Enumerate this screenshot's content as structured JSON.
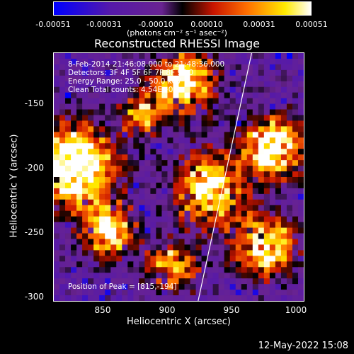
{
  "colorbar": {
    "ticks": [
      "-0.00051",
      "-0.00031",
      "-0.00010",
      "0.00010",
      "0.00031",
      "0.00051"
    ],
    "unit": "(photons cm⁻² s⁻¹ asec⁻²)"
  },
  "title": "Reconstructed RHESSI Image",
  "info": {
    "line1": "8-Feb-2014 21:46:08.000 to 21:48:36.000",
    "line2": "Detectors: 3F 4F 5F 6F 7F 8F 9F 0",
    "line3": "Energy Range: 25.0 - 50.0 keV",
    "line4": "Clean      Total counts: 4.54E+03"
  },
  "peak": "Position of Peak = [815,-194]",
  "y_axis": {
    "label": "Heliocentric Y (arcsec)",
    "ticks": [
      "-150",
      "-200",
      "-250",
      "-300"
    ]
  },
  "x_axis": {
    "label": "Heliocentric X (arcsec)",
    "ticks": [
      "850",
      "900",
      "950",
      "1000"
    ]
  },
  "timestamp": "12-May-2022 15:08"
}
